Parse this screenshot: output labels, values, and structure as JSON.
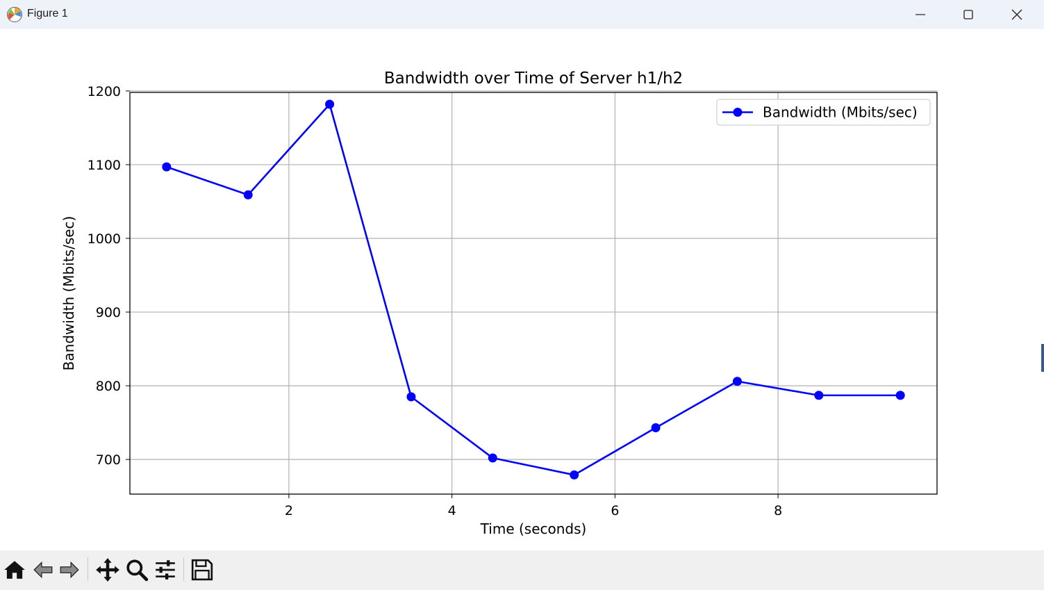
{
  "window": {
    "title": "Figure 1",
    "app_icon": "matplotlib-icon",
    "controls": [
      "minimize-icon",
      "maximize-icon",
      "close-icon"
    ]
  },
  "toolbar": {
    "buttons": [
      {
        "name": "home-button",
        "icon": "home-icon"
      },
      {
        "name": "back-button",
        "icon": "back-arrow-icon"
      },
      {
        "name": "forward-button",
        "icon": "forward-arrow-icon"
      },
      {
        "name": "pan-button",
        "icon": "move-icon"
      },
      {
        "name": "zoom-button",
        "icon": "zoom-icon"
      },
      {
        "name": "configure-subplots-button",
        "icon": "sliders-icon"
      },
      {
        "name": "save-button",
        "icon": "save-icon"
      }
    ]
  },
  "chart_data": {
    "type": "line",
    "title": "Bandwidth over Time of Server h1/h2",
    "xlabel": "Time (seconds)",
    "ylabel": "Bandwidth (Mbits/sec)",
    "xlim": [
      0.05,
      9.95
    ],
    "ylim": [
      653,
      1198
    ],
    "xticks": [
      2,
      4,
      6,
      8
    ],
    "yticks": [
      700,
      800,
      900,
      1000,
      1100,
      1200
    ],
    "grid": true,
    "legend_position": "top-right",
    "series": [
      {
        "name": "Bandwidth (Mbits/sec)",
        "color": "#0000ff",
        "marker": "circle",
        "x": [
          0.5,
          1.5,
          2.5,
          3.5,
          4.5,
          5.5,
          6.5,
          7.5,
          8.5,
          9.5
        ],
        "y": [
          1097,
          1059,
          1182,
          785,
          702,
          679,
          743,
          806,
          787,
          787
        ]
      }
    ]
  }
}
